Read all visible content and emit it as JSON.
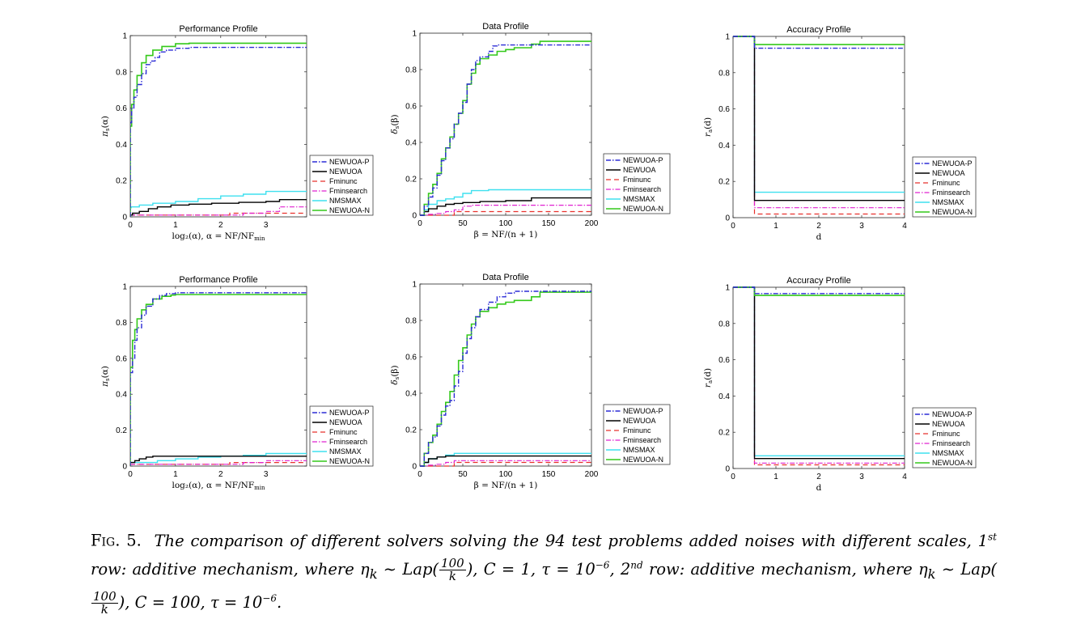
{
  "colors": {
    "NEWUOA-P": "#2b2bd6",
    "NEWUOA": "#000000",
    "Fminunc": "#e8302c",
    "Fminsearch": "#e020d0",
    "NMSMAX": "#3fe0ef",
    "NEWUOA-N": "#34c91a"
  },
  "chart_data": [
    {
      "type": "line",
      "title": "Performance Profile",
      "xlabel": "log₂(α),   α = NF/NF",
      "xlabel_sub": "min",
      "ylabel": "π",
      "ylabel_sub": "s",
      "ylabel_tail": "(α)",
      "xlim": [
        0,
        3.9
      ],
      "ylim": [
        0,
        1
      ],
      "xticks": [
        "0",
        "1",
        "2",
        "3"
      ],
      "xtick_values": [
        0,
        1,
        2,
        3
      ],
      "yticks": [
        "0",
        "0.2",
        "0.4",
        "0.6",
        "0.8",
        "1"
      ],
      "ytick_values": [
        0,
        0.2,
        0.4,
        0.6,
        0.8,
        1
      ],
      "legend": "right-bottom-outside",
      "grid": false,
      "series": [
        {
          "name": "NEWUOA-P",
          "x": [
            0,
            0,
            0.03,
            0.08,
            0.15,
            0.25,
            0.35,
            0.45,
            0.55,
            0.65,
            0.8,
            1.0,
            1.3,
            3.9
          ],
          "y": [
            0,
            0.52,
            0.6,
            0.66,
            0.73,
            0.79,
            0.84,
            0.86,
            0.88,
            0.91,
            0.92,
            0.93,
            0.935,
            0.935
          ]
        },
        {
          "name": "NEWUOA",
          "x": [
            0,
            0.05,
            0.2,
            0.4,
            0.6,
            0.9,
            1.3,
            1.8,
            2.4,
            3.0,
            3.3,
            3.9
          ],
          "y": [
            0.01,
            0.02,
            0.03,
            0.045,
            0.055,
            0.065,
            0.07,
            0.075,
            0.08,
            0.085,
            0.095,
            0.095
          ]
        },
        {
          "name": "Fminunc",
          "x": [
            0,
            2.2,
            2.2,
            3.9
          ],
          "y": [
            0.01,
            0.01,
            0.02,
            0.02
          ]
        },
        {
          "name": "Fminsearch",
          "x": [
            0,
            0.5,
            1.0,
            2.5,
            3.0,
            3.3,
            3.9
          ],
          "y": [
            0.01,
            0.01,
            0.01,
            0.02,
            0.03,
            0.055,
            0.055
          ]
        },
        {
          "name": "NMSMAX",
          "x": [
            0,
            0.02,
            0.2,
            0.5,
            1.0,
            1.5,
            2.0,
            2.5,
            3.0,
            3.9
          ],
          "y": [
            0.05,
            0.055,
            0.065,
            0.075,
            0.085,
            0.1,
            0.115,
            0.125,
            0.14,
            0.14
          ]
        },
        {
          "name": "NEWUOA-N",
          "x": [
            0,
            0,
            0.03,
            0.08,
            0.15,
            0.25,
            0.35,
            0.5,
            0.7,
            1.0,
            1.3,
            3.9
          ],
          "y": [
            0,
            0.5,
            0.62,
            0.7,
            0.78,
            0.85,
            0.89,
            0.92,
            0.94,
            0.955,
            0.958,
            0.958
          ]
        }
      ]
    },
    {
      "type": "line",
      "title": "Data Profile",
      "xlabel": "β = NF/(n + 1)",
      "xlabel_sub": "",
      "ylabel": "δ",
      "ylabel_sub": "s",
      "ylabel_tail": "(β)",
      "xlim": [
        0,
        200
      ],
      "ylim": [
        0,
        1
      ],
      "xticks": [
        "0",
        "50",
        "100",
        "150",
        "200"
      ],
      "xtick_values": [
        0,
        50,
        100,
        150,
        200
      ],
      "yticks": [
        "0",
        "0.2",
        "0.4",
        "0.6",
        "0.8",
        "1"
      ],
      "ytick_values": [
        0,
        0.2,
        0.4,
        0.6,
        0.8,
        1
      ],
      "legend": "right-bottom-outside",
      "grid": false,
      "series": [
        {
          "name": "NEWUOA-P",
          "x": [
            0,
            5,
            10,
            15,
            20,
            25,
            30,
            35,
            40,
            45,
            50,
            55,
            60,
            65,
            70,
            80,
            85,
            90,
            100,
            200
          ],
          "y": [
            0,
            0.05,
            0.1,
            0.15,
            0.22,
            0.3,
            0.37,
            0.42,
            0.5,
            0.56,
            0.62,
            0.72,
            0.8,
            0.85,
            0.87,
            0.9,
            0.93,
            0.935,
            0.935,
            0.935
          ]
        },
        {
          "name": "NEWUOA",
          "x": [
            0,
            5,
            10,
            20,
            30,
            40,
            50,
            70,
            100,
            130,
            200
          ],
          "y": [
            0,
            0.02,
            0.035,
            0.05,
            0.06,
            0.065,
            0.07,
            0.075,
            0.08,
            0.095,
            0.095
          ]
        },
        {
          "name": "Fminunc",
          "x": [
            0,
            40,
            200
          ],
          "y": [
            0,
            0.02,
            0.02
          ]
        },
        {
          "name": "Fminsearch",
          "x": [
            0,
            10,
            20,
            30,
            40,
            50,
            60,
            200
          ],
          "y": [
            0,
            0.005,
            0.01,
            0.02,
            0.03,
            0.05,
            0.055,
            0.055
          ]
        },
        {
          "name": "NMSMAX",
          "x": [
            0,
            5,
            10,
            20,
            30,
            40,
            50,
            60,
            80,
            100,
            130,
            200
          ],
          "y": [
            0,
            0.03,
            0.06,
            0.08,
            0.09,
            0.1,
            0.12,
            0.135,
            0.14,
            0.14,
            0.14,
            0.14
          ]
        },
        {
          "name": "NEWUOA-N",
          "x": [
            0,
            5,
            10,
            15,
            20,
            25,
            30,
            35,
            40,
            45,
            50,
            55,
            60,
            65,
            70,
            80,
            90,
            100,
            110,
            130,
            140,
            200
          ],
          "y": [
            0,
            0.06,
            0.12,
            0.17,
            0.23,
            0.31,
            0.37,
            0.43,
            0.5,
            0.56,
            0.63,
            0.72,
            0.78,
            0.83,
            0.86,
            0.88,
            0.9,
            0.91,
            0.92,
            0.94,
            0.955,
            0.955
          ]
        }
      ]
    },
    {
      "type": "line",
      "title": "Accuracy Profile",
      "xlabel": "d",
      "xlabel_sub": "",
      "ylabel": "r",
      "ylabel_sub": "a",
      "ylabel_tail": "(d)",
      "xlim": [
        0,
        4
      ],
      "ylim": [
        0,
        1
      ],
      "xticks": [
        "0",
        "1",
        "2",
        "3",
        "4"
      ],
      "xtick_values": [
        0,
        1,
        2,
        3,
        4
      ],
      "yticks": [
        "0",
        "0.2",
        "0.4",
        "0.6",
        "0.8",
        "1"
      ],
      "ytick_values": [
        0,
        0.2,
        0.4,
        0.6,
        0.8,
        1
      ],
      "legend": "right-bottom-outside",
      "grid": false,
      "series": [
        {
          "name": "NEWUOA-P",
          "x": [
            0,
            0.5,
            0.5,
            4
          ],
          "y": [
            1,
            1,
            0.935,
            0.935
          ]
        },
        {
          "name": "NEWUOA",
          "x": [
            0,
            0.5,
            0.5,
            4
          ],
          "y": [
            1,
            1,
            0.095,
            0.095
          ]
        },
        {
          "name": "Fminunc",
          "x": [
            0,
            0.5,
            0.5,
            4
          ],
          "y": [
            1,
            1,
            0.02,
            0.02
          ]
        },
        {
          "name": "Fminsearch",
          "x": [
            0,
            0.5,
            0.5,
            4
          ],
          "y": [
            1,
            1,
            0.055,
            0.055
          ]
        },
        {
          "name": "NMSMAX",
          "x": [
            0,
            0.5,
            0.5,
            4
          ],
          "y": [
            1,
            1,
            0.14,
            0.14
          ]
        },
        {
          "name": "NEWUOA-N",
          "x": [
            0,
            0.5,
            0.5,
            4
          ],
          "y": [
            1,
            1,
            0.955,
            0.955
          ]
        }
      ]
    },
    {
      "type": "line",
      "title": "Performance Profile",
      "xlabel": "log₂(α),   α = NF/NF",
      "xlabel_sub": "min",
      "ylabel": "π",
      "ylabel_sub": "s",
      "ylabel_tail": "(α)",
      "xlim": [
        0,
        3.9
      ],
      "ylim": [
        0,
        1
      ],
      "xticks": [
        "0",
        "1",
        "2",
        "3"
      ],
      "xtick_values": [
        0,
        1,
        2,
        3
      ],
      "yticks": [
        "0",
        "0.2",
        "0.4",
        "0.6",
        "0.8",
        "1"
      ],
      "ytick_values": [
        0,
        0.2,
        0.4,
        0.6,
        0.8,
        1
      ],
      "legend": "right-bottom-outside",
      "grid": false,
      "series": [
        {
          "name": "NEWUOA-P",
          "x": [
            0,
            0,
            0.05,
            0.1,
            0.15,
            0.25,
            0.35,
            0.5,
            0.65,
            0.8,
            1.0,
            3.9
          ],
          "y": [
            0,
            0.52,
            0.6,
            0.7,
            0.77,
            0.84,
            0.89,
            0.93,
            0.95,
            0.96,
            0.965,
            0.965
          ]
        },
        {
          "name": "NEWUOA",
          "x": [
            0,
            0.05,
            0.1,
            0.2,
            0.35,
            0.5,
            3.9
          ],
          "y": [
            0.02,
            0.02,
            0.03,
            0.04,
            0.05,
            0.055,
            0.055
          ]
        },
        {
          "name": "Fminunc",
          "x": [
            0,
            2.2,
            2.2,
            3.9
          ],
          "y": [
            0.01,
            0.01,
            0.02,
            0.02
          ]
        },
        {
          "name": "Fminsearch",
          "x": [
            0,
            1.0,
            2.0,
            2.5,
            3.0,
            3.9
          ],
          "y": [
            0.01,
            0.01,
            0.01,
            0.02,
            0.03,
            0.03
          ]
        },
        {
          "name": "NMSMAX",
          "x": [
            0,
            0.5,
            0.6,
            1.0,
            1.5,
            2.0,
            2.5,
            3.0,
            3.9
          ],
          "y": [
            0.02,
            0.02,
            0.03,
            0.04,
            0.05,
            0.055,
            0.06,
            0.07,
            0.07
          ]
        },
        {
          "name": "NEWUOA-N",
          "x": [
            0,
            0,
            0.05,
            0.1,
            0.15,
            0.25,
            0.35,
            0.5,
            0.7,
            0.9,
            1.0,
            3.9
          ],
          "y": [
            0,
            0.55,
            0.7,
            0.76,
            0.82,
            0.87,
            0.9,
            0.93,
            0.945,
            0.952,
            0.955,
            0.955
          ]
        }
      ]
    },
    {
      "type": "line",
      "title": "Data Profile",
      "xlabel": "β = NF/(n + 1)",
      "xlabel_sub": "",
      "ylabel": "δ",
      "ylabel_sub": "s",
      "ylabel_tail": "(β)",
      "xlim": [
        0,
        200
      ],
      "ylim": [
        0,
        1
      ],
      "xticks": [
        "0",
        "50",
        "100",
        "150",
        "200"
      ],
      "xtick_values": [
        0,
        50,
        100,
        150,
        200
      ],
      "yticks": [
        "0",
        "0.2",
        "0.4",
        "0.6",
        "0.8",
        "1"
      ],
      "ytick_values": [
        0,
        0.2,
        0.4,
        0.6,
        0.8,
        1
      ],
      "legend": "right-bottom-outside",
      "grid": false,
      "series": [
        {
          "name": "NEWUOA-P",
          "x": [
            0,
            5,
            10,
            15,
            20,
            25,
            30,
            35,
            40,
            45,
            50,
            55,
            60,
            65,
            70,
            80,
            90,
            100,
            110,
            200
          ],
          "y": [
            0,
            0.07,
            0.13,
            0.16,
            0.22,
            0.28,
            0.33,
            0.36,
            0.44,
            0.52,
            0.62,
            0.7,
            0.76,
            0.82,
            0.86,
            0.9,
            0.93,
            0.95,
            0.96,
            0.96
          ]
        },
        {
          "name": "NEWUOA",
          "x": [
            0,
            5,
            10,
            20,
            30,
            200
          ],
          "y": [
            0,
            0.02,
            0.04,
            0.05,
            0.055,
            0.055
          ]
        },
        {
          "name": "Fminunc",
          "x": [
            0,
            40,
            200
          ],
          "y": [
            0,
            0.02,
            0.02
          ]
        },
        {
          "name": "Fminsearch",
          "x": [
            0,
            10,
            20,
            30,
            40,
            200
          ],
          "y": [
            0,
            0.005,
            0.01,
            0.02,
            0.03,
            0.03
          ]
        },
        {
          "name": "NMSMAX",
          "x": [
            0,
            5,
            10,
            20,
            30,
            40,
            60,
            200
          ],
          "y": [
            0,
            0.02,
            0.04,
            0.05,
            0.06,
            0.07,
            0.07,
            0.07
          ]
        },
        {
          "name": "NEWUOA-N",
          "x": [
            0,
            5,
            10,
            15,
            20,
            25,
            30,
            35,
            40,
            45,
            50,
            55,
            60,
            65,
            70,
            80,
            90,
            100,
            110,
            130,
            140,
            200
          ],
          "y": [
            0,
            0.07,
            0.13,
            0.17,
            0.23,
            0.3,
            0.35,
            0.41,
            0.5,
            0.58,
            0.65,
            0.72,
            0.78,
            0.82,
            0.85,
            0.87,
            0.89,
            0.9,
            0.91,
            0.93,
            0.955,
            0.955
          ]
        }
      ]
    },
    {
      "type": "line",
      "title": "Accuracy Profile",
      "xlabel": "d",
      "xlabel_sub": "",
      "ylabel": "r",
      "ylabel_sub": "a",
      "ylabel_tail": "(d)",
      "xlim": [
        0,
        4
      ],
      "ylim": [
        0,
        1
      ],
      "xticks": [
        "0",
        "1",
        "2",
        "3",
        "4"
      ],
      "xtick_values": [
        0,
        1,
        2,
        3,
        4
      ],
      "yticks": [
        "0",
        "0.2",
        "0.4",
        "0.6",
        "0.8",
        "1"
      ],
      "ytick_values": [
        0,
        0.2,
        0.4,
        0.6,
        0.8,
        1
      ],
      "legend": "right-bottom-outside",
      "grid": false,
      "series": [
        {
          "name": "NEWUOA-P",
          "x": [
            0,
            0.5,
            0.5,
            4
          ],
          "y": [
            1,
            1,
            0.965,
            0.965
          ]
        },
        {
          "name": "NEWUOA",
          "x": [
            0,
            0.5,
            0.5,
            4
          ],
          "y": [
            1,
            1,
            0.055,
            0.055
          ]
        },
        {
          "name": "Fminunc",
          "x": [
            0,
            0.5,
            0.5,
            4
          ],
          "y": [
            1,
            1,
            0.02,
            0.02
          ]
        },
        {
          "name": "Fminsearch",
          "x": [
            0,
            0.5,
            0.5,
            4
          ],
          "y": [
            1,
            1,
            0.03,
            0.03
          ]
        },
        {
          "name": "NMSMAX",
          "x": [
            0,
            0.5,
            0.5,
            4
          ],
          "y": [
            1,
            1,
            0.07,
            0.07
          ]
        },
        {
          "name": "NEWUOA-N",
          "x": [
            0,
            0.5,
            0.5,
            4
          ],
          "y": [
            1,
            1,
            0.955,
            0.955
          ]
        }
      ]
    }
  ],
  "caption": {
    "label": "Fig. 5.",
    "p1": "The comparison of different solvers solving the 94 test problems added noises with different scales, 1",
    "sup1": "st",
    "p2": " row: additive mechanism, where η",
    "sub_k": "k",
    "p3": " ∼ Lap(",
    "frac_num": "100",
    "frac_den": "k",
    "p4": "), C = 1, τ = 10",
    "exp1": "−6",
    "p5": ", 2",
    "sup2": "nd",
    "p6": " row: additive mechanism, where η",
    "p7": " ∼ Lap(",
    "p8": "), C = 100, τ = 10",
    "exp2": "−6",
    "p9": "."
  }
}
